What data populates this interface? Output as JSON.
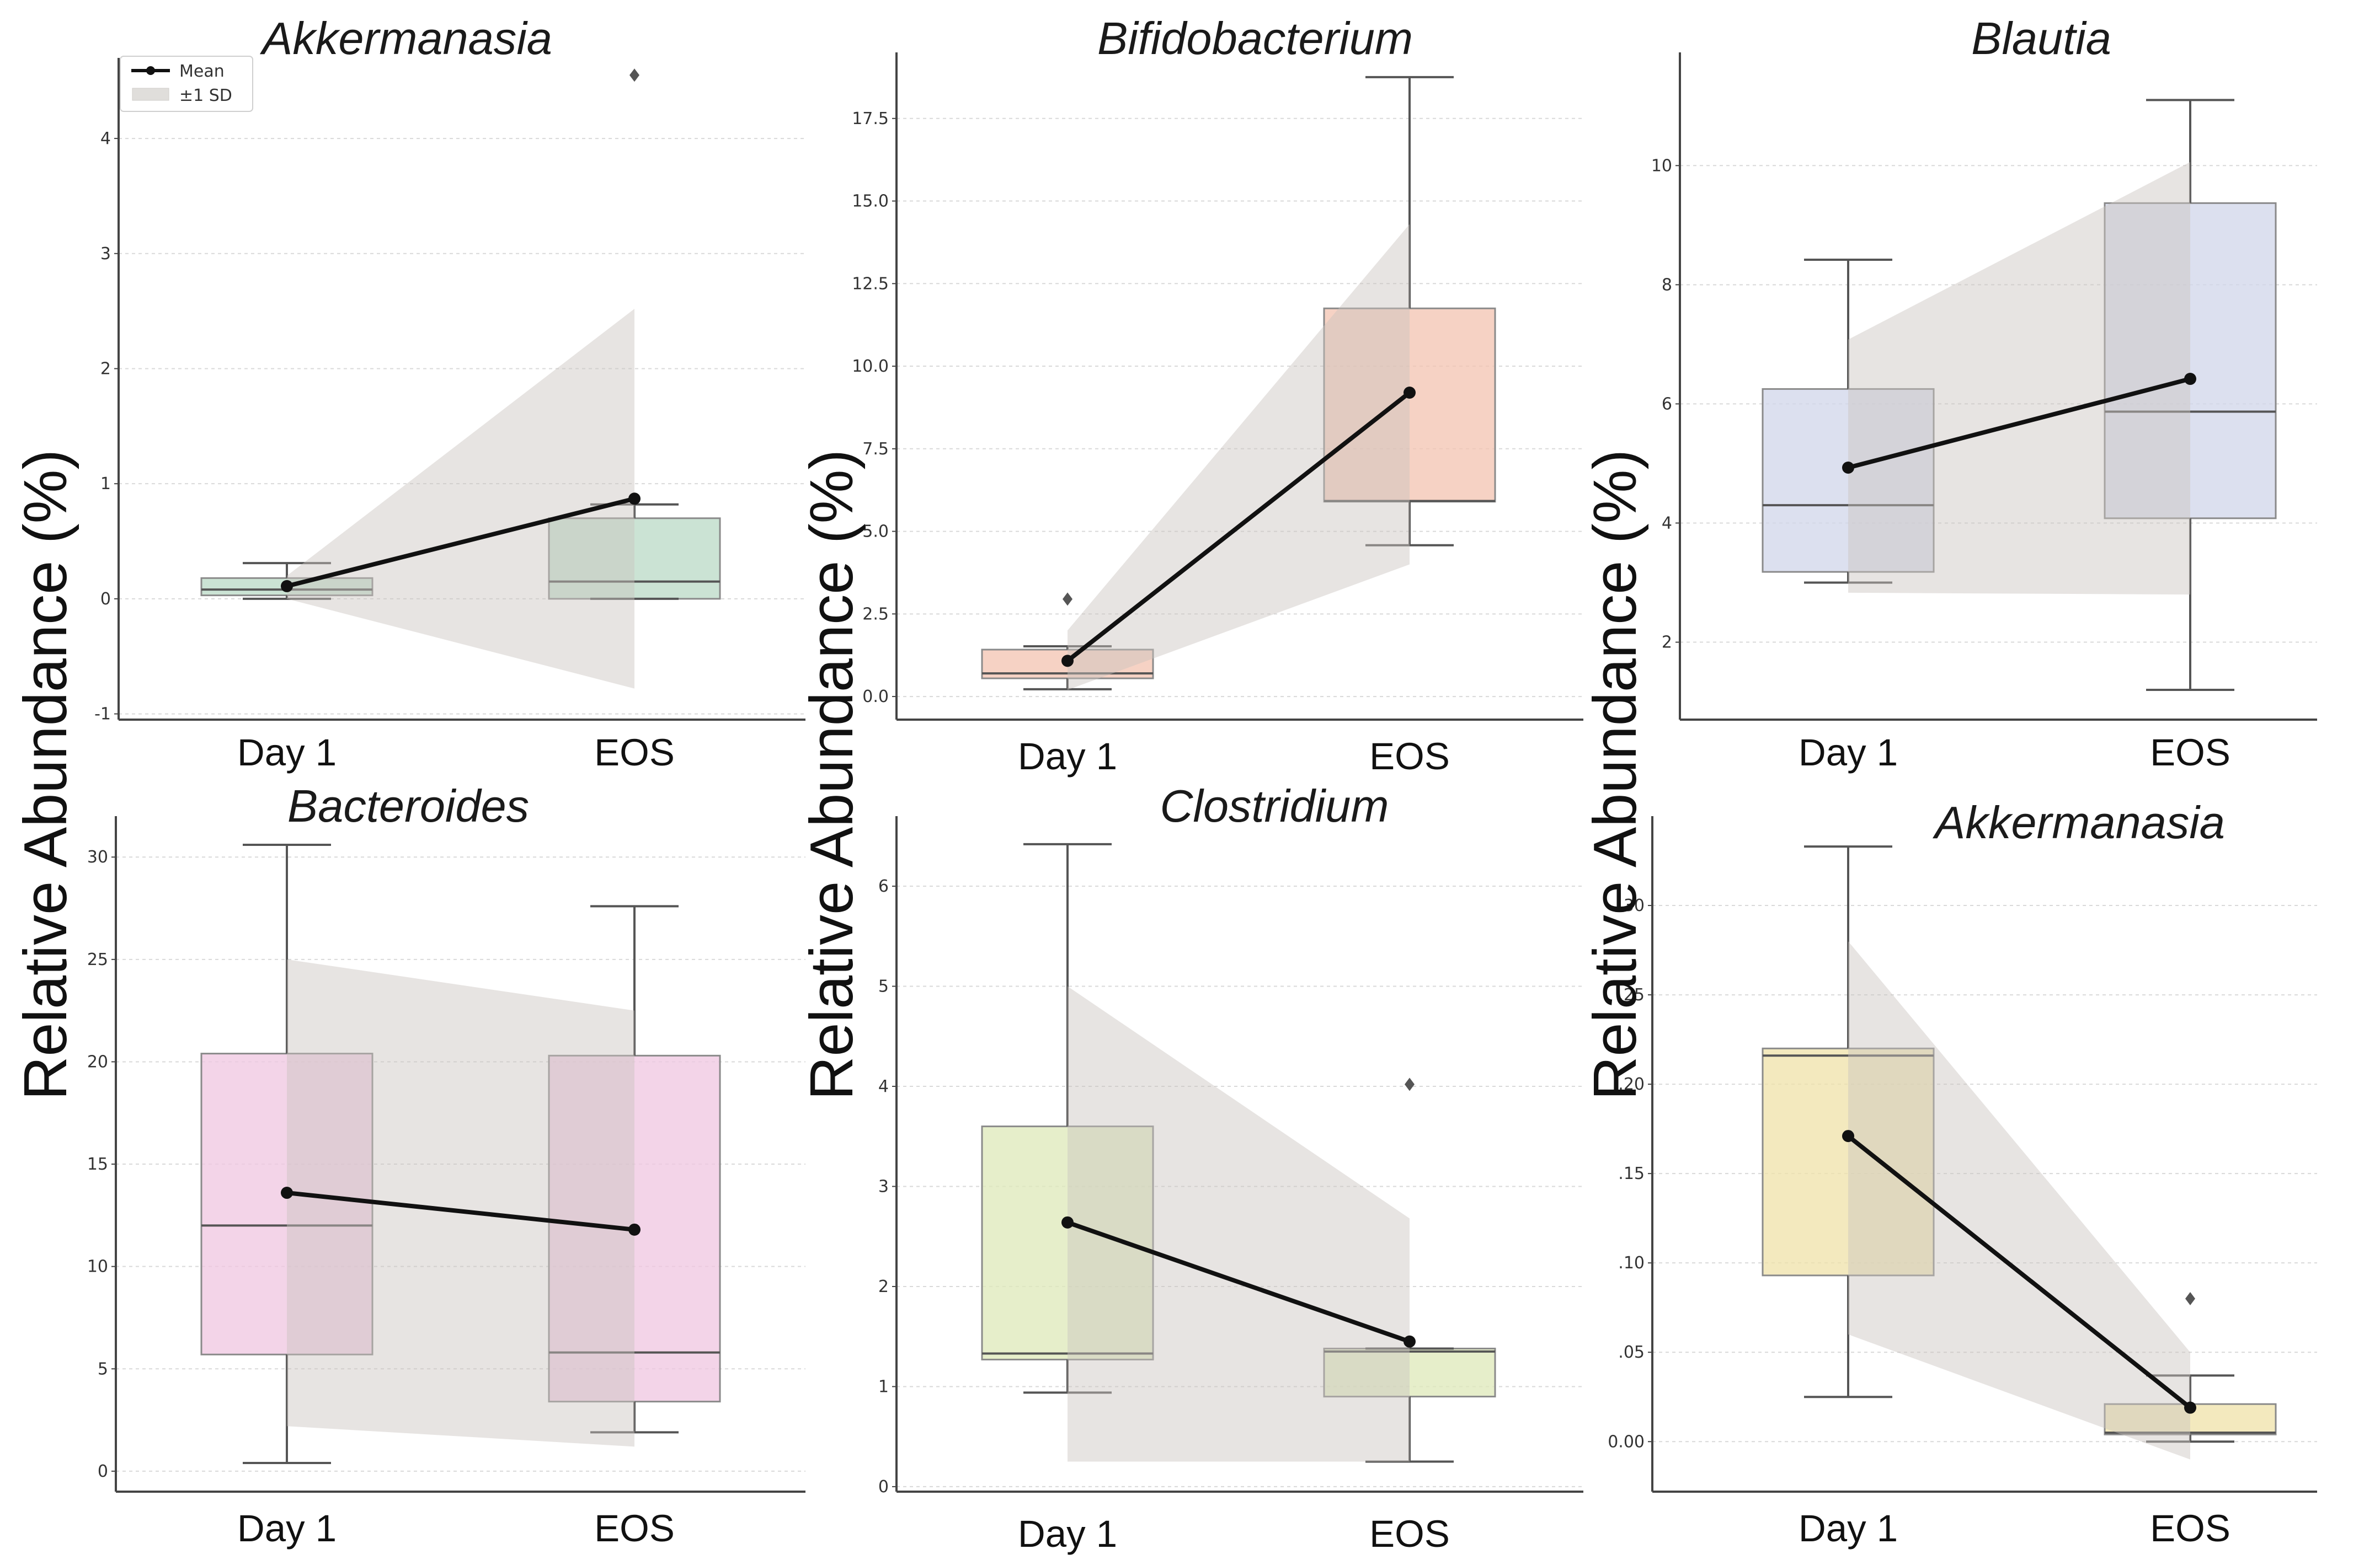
{
  "chart_data": [
    {
      "type": "box",
      "title": "Akkermanasia",
      "categories": [
        "Day 1",
        "EOS"
      ],
      "ylabel": "Relative Abundance (%)",
      "ylim": [
        -1.05,
        4.7
      ],
      "yticks": [
        -1,
        0,
        1,
        2,
        3,
        4
      ],
      "tick_labels": [
        "-1",
        "0",
        "1",
        "2",
        "3",
        "4"
      ],
      "color": "#b9d9c6",
      "boxes": [
        {
          "whisker_low": 0.0,
          "q1": 0.03,
          "median": 0.08,
          "q3": 0.18,
          "whisker_high": 0.31,
          "outliers": []
        },
        {
          "whisker_low": 0.0,
          "q1": 0.0,
          "median": 0.15,
          "q3": 0.7,
          "whisker_high": 0.82,
          "outliers": [
            4.55
          ]
        }
      ],
      "mean": [
        0.11,
        0.87
      ],
      "sd_band": {
        "lower": [
          0.0,
          -0.78
        ],
        "upper": [
          0.2,
          2.52
        ]
      },
      "legend": [
        "Mean",
        "±1 SD"
      ]
    },
    {
      "type": "box",
      "title": "Bifidobacterium",
      "categories": [
        "Day 1",
        "EOS"
      ],
      "ylabel": "Relative Abundance (%)",
      "ylim": [
        -0.7,
        19.5
      ],
      "yticks": [
        0,
        2.5,
        5,
        7.5,
        10,
        12.5,
        15,
        17.5
      ],
      "tick_labels": [
        "0.0",
        "2.5",
        "5.0",
        "7.5",
        "10.0",
        "12.5",
        "15.0",
        "17.5"
      ],
      "color": "#f3c3b0",
      "boxes": [
        {
          "whisker_low": 0.22,
          "q1": 0.55,
          "median": 0.7,
          "q3": 1.42,
          "whisker_high": 1.52,
          "outliers": [
            2.95
          ]
        },
        {
          "whisker_low": 4.58,
          "q1": 5.9,
          "median": 5.92,
          "q3": 11.75,
          "whisker_high": 18.75,
          "outliers": []
        }
      ],
      "mean": [
        1.08,
        9.2
      ],
      "sd_band": {
        "lower": [
          0.2,
          4.0
        ],
        "upper": [
          2.0,
          14.3
        ]
      }
    },
    {
      "type": "box",
      "title": "Blautia",
      "categories": [
        "Day 1",
        "EOS"
      ],
      "ylabel": "Relative Abundance (%)",
      "ylim": [
        0.7,
        11.9
      ],
      "yticks": [
        2,
        4,
        6,
        8,
        10
      ],
      "tick_labels": [
        "2",
        "4",
        "6",
        "8",
        "10"
      ],
      "color": "#d0d6ea",
      "boxes": [
        {
          "whisker_low": 3.0,
          "q1": 3.18,
          "median": 4.3,
          "q3": 6.25,
          "whisker_high": 8.42,
          "outliers": []
        },
        {
          "whisker_low": 1.2,
          "q1": 4.08,
          "median": 5.87,
          "q3": 9.37,
          "whisker_high": 11.1,
          "outliers": []
        }
      ],
      "mean": [
        4.93,
        6.42
      ],
      "sd_band": {
        "lower": [
          2.83,
          2.8
        ],
        "upper": [
          7.08,
          10.06
        ]
      }
    },
    {
      "type": "box",
      "title": "Bacteroides",
      "categories": [
        "Day 1",
        "EOS"
      ],
      "ylabel": "Relative Abundance (%)",
      "ylim": [
        -1.0,
        32.0
      ],
      "yticks": [
        0,
        5,
        10,
        15,
        20,
        25,
        30
      ],
      "tick_labels": [
        "0",
        "5",
        "10",
        "15",
        "20",
        "25",
        "30"
      ],
      "color": "#efc5e0",
      "boxes": [
        {
          "whisker_low": 0.4,
          "q1": 5.7,
          "median": 12.0,
          "q3": 20.4,
          "whisker_high": 30.6,
          "outliers": []
        },
        {
          "whisker_low": 1.9,
          "q1": 3.4,
          "median": 5.8,
          "q3": 20.3,
          "whisker_high": 27.6,
          "outliers": []
        }
      ],
      "mean": [
        13.6,
        11.8
      ],
      "sd_band": {
        "lower": [
          2.2,
          1.2
        ],
        "upper": [
          25.0,
          22.5
        ]
      }
    },
    {
      "type": "box",
      "title": "Clostridium",
      "categories": [
        "Day 1",
        "EOS"
      ],
      "ylabel": "Relative Abundance (%)",
      "ylim": [
        -0.05,
        6.7
      ],
      "yticks": [
        0,
        1,
        2,
        3,
        4,
        5,
        6
      ],
      "tick_labels": [
        "0",
        "1",
        "2",
        "3",
        "4",
        "5",
        "6"
      ],
      "color": "#dde8b8",
      "boxes": [
        {
          "whisker_low": 0.94,
          "q1": 1.27,
          "median": 1.33,
          "q3": 3.6,
          "whisker_high": 6.42,
          "outliers": []
        },
        {
          "whisker_low": 0.25,
          "q1": 0.9,
          "median": 1.35,
          "q3": 1.38,
          "whisker_high": 1.38,
          "outliers": [
            4.02
          ]
        }
      ],
      "mean": [
        2.64,
        1.45
      ],
      "sd_band": {
        "lower": [
          0.25,
          0.25
        ],
        "upper": [
          5.0,
          2.68
        ]
      }
    },
    {
      "type": "box",
      "title": "Akkermanasia",
      "categories": [
        "Day 1",
        "EOS"
      ],
      "ylabel": "Relative Abundance (%)",
      "ylim": [
        -0.028,
        0.35
      ],
      "yticks": [
        0,
        0.05,
        0.1,
        0.15,
        0.2,
        0.25,
        0.3
      ],
      "tick_labels": [
        "0.00",
        ".05",
        ".10",
        ".15",
        ".20",
        ".25",
        ".30"
      ],
      "color": "#efe2a8",
      "boxes": [
        {
          "whisker_low": 0.025,
          "q1": 0.093,
          "median": 0.216,
          "q3": 0.22,
          "whisker_high": 0.333,
          "outliers": []
        },
        {
          "whisker_low": 0.0,
          "q1": 0.004,
          "median": 0.005,
          "q3": 0.021,
          "whisker_high": 0.037,
          "outliers": [
            0.08
          ]
        }
      ],
      "mean": [
        0.171,
        0.019
      ],
      "sd_band": {
        "lower": [
          0.06,
          -0.01
        ],
        "upper": [
          0.28,
          0.05
        ]
      }
    }
  ]
}
